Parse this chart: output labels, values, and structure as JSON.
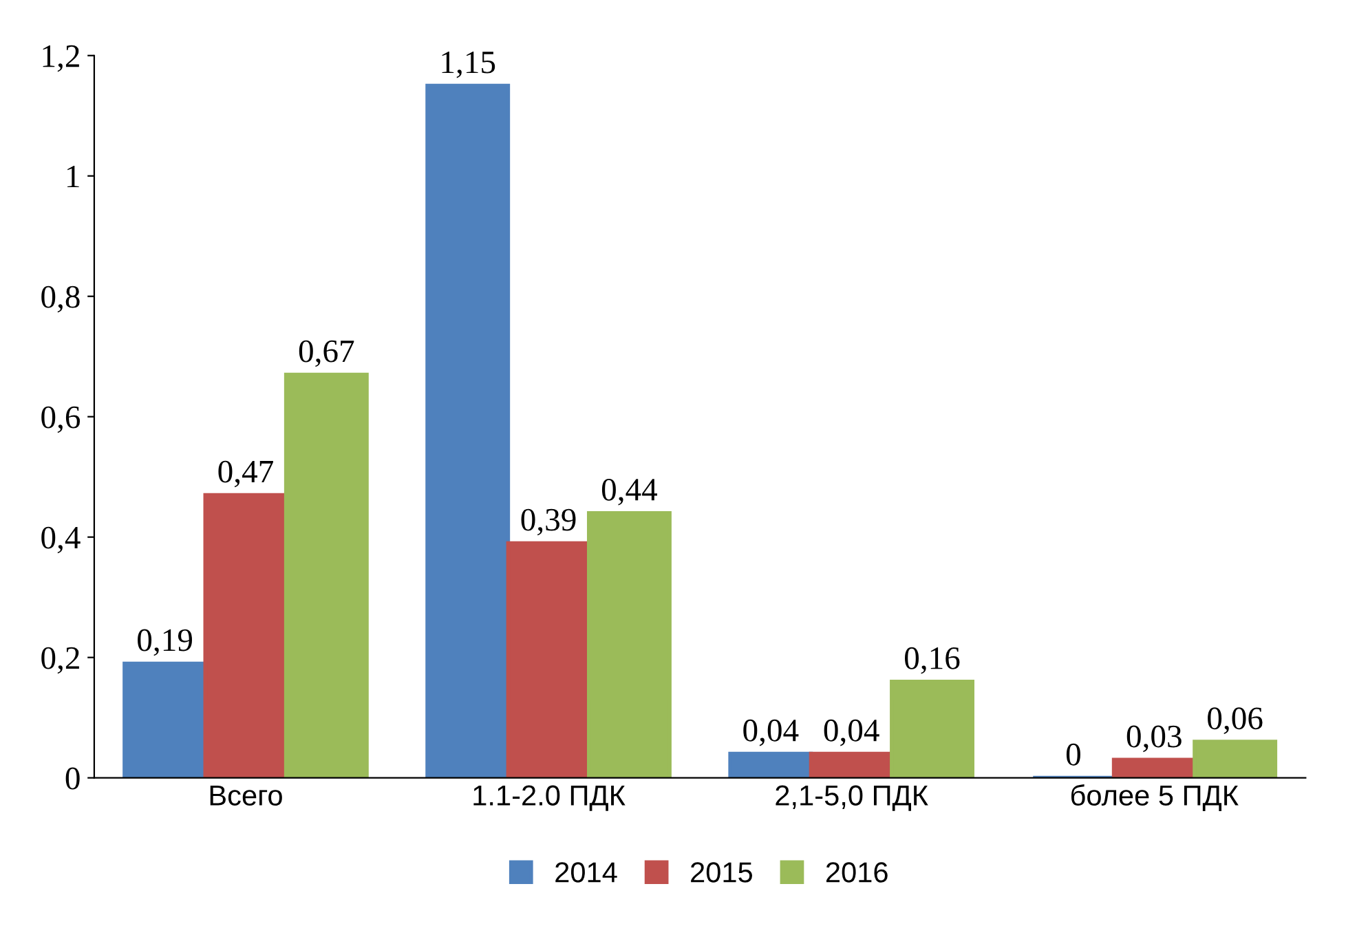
{
  "chart_data": {
    "type": "bar",
    "categories": [
      "Всего",
      "1.1-2.0 ПДК",
      "2,1-5,0 ПДК",
      "более 5 ПДК"
    ],
    "series": [
      {
        "name": "2014",
        "color": "#4f81bd",
        "values": [
          0.19,
          1.15,
          0.04,
          0
        ],
        "value_labels": [
          "0,19",
          "1,15",
          "0,04",
          "0"
        ]
      },
      {
        "name": "2015",
        "color": "#c0504d",
        "values": [
          0.47,
          0.39,
          0.04,
          0.03
        ],
        "value_labels": [
          "0,47",
          "0,39",
          "0,04",
          "0,03"
        ]
      },
      {
        "name": "2016",
        "color": "#9bbb59",
        "values": [
          0.67,
          0.44,
          0.16,
          0.06
        ],
        "value_labels": [
          "0,67",
          "0,44",
          "0,16",
          "0,06"
        ]
      }
    ],
    "ylim": [
      0,
      1.2
    ],
    "yticks": [
      0,
      {
        "value": 0.2,
        "label": "0,2"
      },
      {
        "value": 0.4,
        "label": "0,4"
      },
      {
        "value": 0.6,
        "label": "0,6"
      },
      {
        "value": 0.8,
        "label": "0,8"
      },
      1,
      {
        "value": 1.2,
        "label": "1,2"
      }
    ],
    "grid": false,
    "legend": "bottom"
  }
}
